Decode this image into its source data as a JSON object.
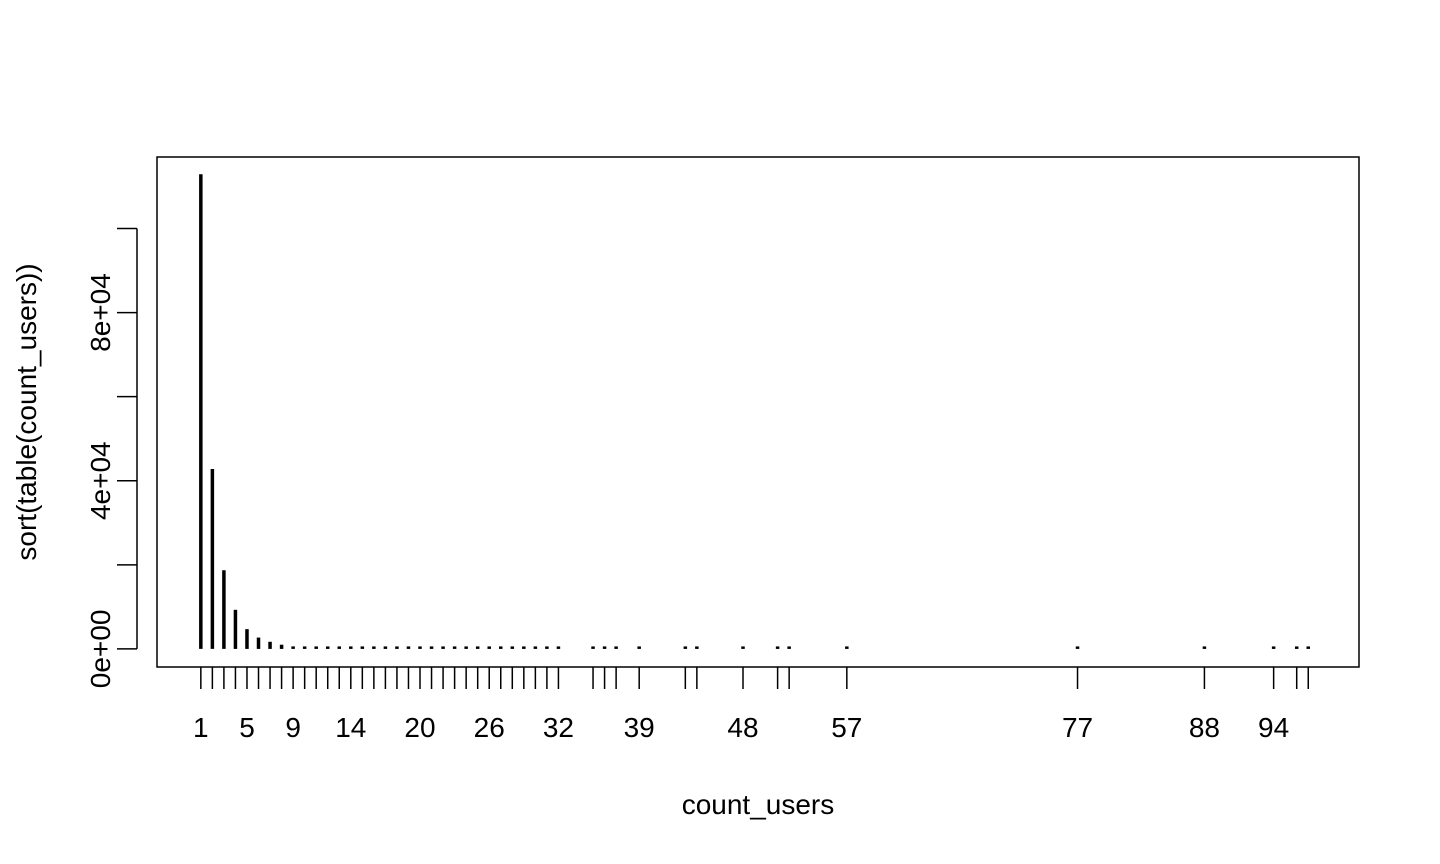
{
  "chart_data": {
    "type": "bar",
    "plot_style": "histogram-lines",
    "xlabel": "count_users",
    "ylabel": "sort(table(count_users))",
    "x": [
      1,
      2,
      3,
      4,
      5,
      6,
      7,
      8,
      9,
      10,
      11,
      12,
      13,
      14,
      15,
      16,
      17,
      18,
      19,
      20,
      21,
      22,
      23,
      24,
      25,
      26,
      27,
      28,
      29,
      30,
      31,
      32,
      35,
      36,
      37,
      39,
      43,
      44,
      48,
      51,
      52,
      57,
      77,
      88,
      94,
      96,
      97
    ],
    "values": [
      112900,
      42800,
      18700,
      9300,
      4700,
      2700,
      1700,
      1000,
      600,
      400,
      300,
      200,
      150,
      120,
      100,
      80,
      70,
      60,
      50,
      40,
      35,
      30,
      25,
      20,
      18,
      15,
      12,
      10,
      9,
      8,
      7,
      6,
      5,
      4,
      4,
      3,
      3,
      2,
      2,
      2,
      2,
      1,
      1,
      1,
      1,
      1,
      1
    ],
    "xlim": [
      -2.8,
      101.4
    ],
    "ylim": [
      -4300,
      117000
    ],
    "x_tick_labels": [
      "1",
      "5",
      "9",
      "14",
      "20",
      "26",
      "32",
      "39",
      "48",
      "57",
      "77",
      "88",
      "94"
    ],
    "y_ticks": [
      0,
      20000,
      40000,
      60000,
      80000,
      100000
    ],
    "y_tick_labels": [
      "0e+00",
      "4e+04",
      "8e+04"
    ],
    "y_tick_labeled_values": [
      0,
      40000,
      80000
    ],
    "grid": false,
    "legend": "none"
  }
}
